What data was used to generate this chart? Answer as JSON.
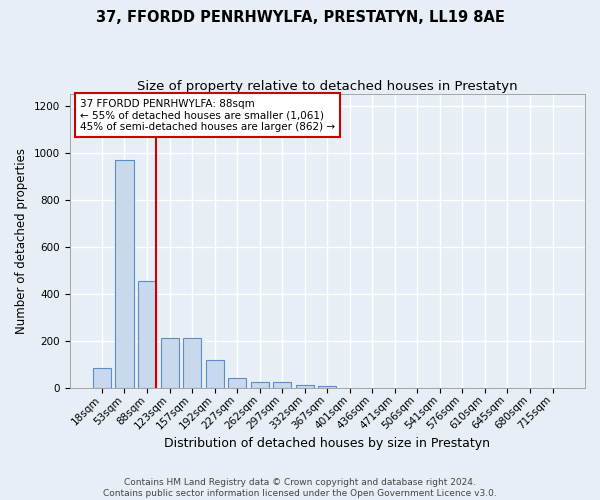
{
  "title": "37, FFORDD PENRHWYLFA, PRESTATYN, LL19 8AE",
  "subtitle": "Size of property relative to detached houses in Prestatyn",
  "xlabel": "Distribution of detached houses by size in Prestatyn",
  "ylabel": "Number of detached properties",
  "categories": [
    "18sqm",
    "53sqm",
    "88sqm",
    "123sqm",
    "157sqm",
    "192sqm",
    "227sqm",
    "262sqm",
    "297sqm",
    "332sqm",
    "367sqm",
    "401sqm",
    "436sqm",
    "471sqm",
    "506sqm",
    "541sqm",
    "576sqm",
    "610sqm",
    "645sqm",
    "680sqm",
    "715sqm"
  ],
  "bar_heights": [
    85,
    970,
    455,
    215,
    215,
    120,
    45,
    25,
    25,
    15,
    10,
    0,
    0,
    0,
    0,
    0,
    0,
    0,
    0,
    0,
    0
  ],
  "bar_color": "#c8d9ed",
  "bar_edge_color": "#5b8ec4",
  "red_line_color": "#cc0000",
  "red_line_index": 2,
  "annotation_box_text": "37 FFORDD PENRHWYLFA: 88sqm\n← 55% of detached houses are smaller (1,061)\n45% of semi-detached houses are larger (862) →",
  "annotation_box_edge_color": "#cc0000",
  "ylim": [
    0,
    1250
  ],
  "yticks": [
    0,
    200,
    400,
    600,
    800,
    1000,
    1200
  ],
  "footer_text": "Contains HM Land Registry data © Crown copyright and database right 2024.\nContains public sector information licensed under the Open Government Licence v3.0.",
  "background_color": "#e8eef5",
  "plot_bg_color": "#e8eef5",
  "grid_color": "#ffffff",
  "title_fontsize": 10.5,
  "subtitle_fontsize": 9.5,
  "xlabel_fontsize": 9,
  "ylabel_fontsize": 8.5,
  "tick_fontsize": 7.5,
  "annotation_fontsize": 7.5,
  "footer_fontsize": 6.5
}
